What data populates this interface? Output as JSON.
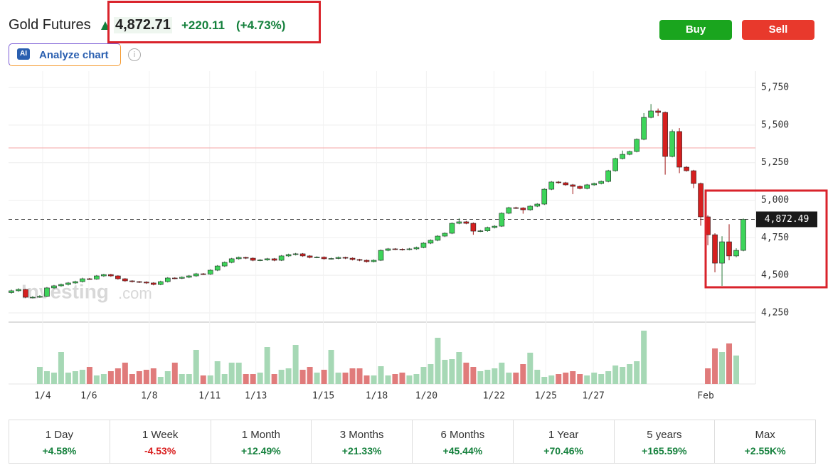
{
  "header": {
    "title": "Gold Futures",
    "price": "4,872.71",
    "change": "+220.11",
    "change_percent": "(+4.73%)"
  },
  "buttons": {
    "analyze_icon": "AI",
    "analyze": "Analyze chart",
    "info": "i",
    "buy": "Buy",
    "sell": "Sell"
  },
  "periods": [
    {
      "label": "1 Day",
      "change": "+4.58%"
    },
    {
      "label": "1 Week",
      "change": "-4.53%"
    },
    {
      "label": "1 Month",
      "change": "+12.49%"
    },
    {
      "label": "3 Months",
      "change": "+21.33%"
    },
    {
      "label": "6 Months",
      "change": "+45.44%"
    },
    {
      "label": "1 Year",
      "change": "+70.46%"
    },
    {
      "label": "5 years",
      "change": "+165.59%"
    },
    {
      "label": "Max",
      "change": "+2.55K%"
    }
  ],
  "chart_data": {
    "type": "candlestick",
    "watermark": {
      "brand": "Investing",
      "suffix": ".com"
    },
    "ylim": [
      4179,
      5859
    ],
    "yticks": [
      {
        "value": 4250,
        "label": "4,250"
      },
      {
        "value": 4500,
        "label": "4,500"
      },
      {
        "value": 4750,
        "label": "4,750"
      },
      {
        "value": 5000,
        "label": "5,000"
      },
      {
        "value": 5250,
        "label": "5,250"
      },
      {
        "value": 5500,
        "label": "5,500"
      },
      {
        "value": 5750,
        "label": "5,750"
      }
    ],
    "xticks": [
      {
        "value": 4.4,
        "label": "1/4"
      },
      {
        "value": 10.9,
        "label": "1/6"
      },
      {
        "value": 19.4,
        "label": "1/8"
      },
      {
        "value": 27.9,
        "label": "1/11"
      },
      {
        "value": 34.4,
        "label": "1/13"
      },
      {
        "value": 43.9,
        "label": "1/15"
      },
      {
        "value": 51.4,
        "label": "1/18"
      },
      {
        "value": 58.4,
        "label": "1/20"
      },
      {
        "value": 67.9,
        "label": "1/22"
      },
      {
        "value": 75.2,
        "label": "1/25"
      },
      {
        "value": 81.9,
        "label": "1/27"
      },
      {
        "value": 97.7,
        "label": "Feb"
      }
    ],
    "grid": true,
    "up_color": "#3dd45a",
    "down_color": "#d61f1f",
    "reference_line": 5348,
    "current_price": {
      "value": 4872.49,
      "label": "4,872.49"
    },
    "candles": [
      [
        4385,
        4405,
        4378,
        4397
      ],
      [
        4397,
        4414,
        4390,
        4406
      ],
      [
        4406,
        4410,
        4348,
        4354
      ],
      [
        4354,
        4362,
        4346,
        4354
      ],
      [
        4354,
        4368,
        4350,
        4360
      ],
      [
        4360,
        4422,
        4356,
        4416
      ],
      [
        4416,
        4436,
        4410,
        4430
      ],
      [
        4430,
        4445,
        4424,
        4439
      ],
      [
        4439,
        4455,
        4432,
        4449
      ],
      [
        4449,
        4464,
        4442,
        4458
      ],
      [
        4458,
        4484,
        4452,
        4477
      ],
      [
        4477,
        4482,
        4470,
        4475
      ],
      [
        4475,
        4502,
        4470,
        4496
      ],
      [
        4496,
        4510,
        4490,
        4505
      ],
      [
        4505,
        4510,
        4490,
        4496
      ],
      [
        4496,
        4500,
        4471,
        4477
      ],
      [
        4477,
        4481,
        4457,
        4463
      ],
      [
        4463,
        4467,
        4452,
        4458
      ],
      [
        4458,
        4462,
        4449,
        4455
      ],
      [
        4455,
        4460,
        4443,
        4449
      ],
      [
        4449,
        4454,
        4433,
        4439
      ],
      [
        4439,
        4464,
        4434,
        4458
      ],
      [
        4458,
        4488,
        4452,
        4482
      ],
      [
        4482,
        4487,
        4474,
        4480
      ],
      [
        4480,
        4493,
        4475,
        4487
      ],
      [
        4487,
        4502,
        4481,
        4496
      ],
      [
        4496,
        4516,
        4490,
        4510
      ],
      [
        4510,
        4515,
        4502,
        4508
      ],
      [
        4508,
        4540,
        4503,
        4534
      ],
      [
        4534,
        4568,
        4528,
        4562
      ],
      [
        4562,
        4592,
        4556,
        4586
      ],
      [
        4586,
        4616,
        4580,
        4610
      ],
      [
        4610,
        4625,
        4604,
        4619
      ],
      [
        4619,
        4624,
        4608,
        4614
      ],
      [
        4614,
        4619,
        4594,
        4600
      ],
      [
        4600,
        4608,
        4594,
        4602
      ],
      [
        4602,
        4616,
        4596,
        4610
      ],
      [
        4610,
        4615,
        4594,
        4600
      ],
      [
        4600,
        4635,
        4595,
        4629
      ],
      [
        4629,
        4644,
        4623,
        4638
      ],
      [
        4638,
        4649,
        4632,
        4643
      ],
      [
        4643,
        4648,
        4623,
        4629
      ],
      [
        4629,
        4634,
        4613,
        4619
      ],
      [
        4619,
        4627,
        4614,
        4621
      ],
      [
        4621,
        4626,
        4604,
        4610
      ],
      [
        4610,
        4618,
        4605,
        4612
      ],
      [
        4612,
        4625,
        4607,
        4619
      ],
      [
        4619,
        4624,
        4608,
        4614
      ],
      [
        4614,
        4619,
        4599,
        4605
      ],
      [
        4605,
        4610,
        4594,
        4600
      ],
      [
        4600,
        4605,
        4585,
        4591
      ],
      [
        4591,
        4606,
        4586,
        4600
      ],
      [
        4600,
        4672,
        4595,
        4666
      ],
      [
        4666,
        4682,
        4660,
        4676
      ],
      [
        4676,
        4681,
        4668,
        4674
      ],
      [
        4674,
        4679,
        4665,
        4671
      ],
      [
        4671,
        4682,
        4666,
        4676
      ],
      [
        4676,
        4691,
        4670,
        4685
      ],
      [
        4685,
        4720,
        4680,
        4714
      ],
      [
        4714,
        4739,
        4708,
        4733
      ],
      [
        4733,
        4767,
        4727,
        4761
      ],
      [
        4761,
        4786,
        4755,
        4780
      ],
      [
        4780,
        4852,
        4774,
        4846
      ],
      [
        4846,
        4880,
        4840,
        4856
      ],
      [
        4856,
        4862,
        4840,
        4846
      ],
      [
        4846,
        4852,
        4770,
        4794
      ],
      [
        4794,
        4802,
        4788,
        4796
      ],
      [
        4796,
        4824,
        4790,
        4818
      ],
      [
        4818,
        4833,
        4812,
        4827
      ],
      [
        4827,
        4919,
        4822,
        4913
      ],
      [
        4913,
        4956,
        4907,
        4950
      ],
      [
        4950,
        4956,
        4942,
        4948
      ],
      [
        4948,
        4953,
        4910,
        4936
      ],
      [
        4936,
        4966,
        4930,
        4960
      ],
      [
        4960,
        4980,
        4954,
        4974
      ],
      [
        4974,
        5079,
        4968,
        5073
      ],
      [
        5073,
        5127,
        5067,
        5121
      ],
      [
        5121,
        5127,
        5110,
        5116
      ],
      [
        5116,
        5122,
        5096,
        5102
      ],
      [
        5102,
        5108,
        5040,
        5092
      ],
      [
        5092,
        5098,
        5072,
        5078
      ],
      [
        5078,
        5108,
        5072,
        5102
      ],
      [
        5102,
        5117,
        5096,
        5111
      ],
      [
        5111,
        5131,
        5105,
        5125
      ],
      [
        5125,
        5202,
        5119,
        5196
      ],
      [
        5196,
        5283,
        5190,
        5277
      ],
      [
        5277,
        5330,
        5271,
        5305
      ],
      [
        5305,
        5330,
        5299,
        5324
      ],
      [
        5324,
        5411,
        5318,
        5405
      ],
      [
        5405,
        5580,
        5399,
        5551
      ],
      [
        5551,
        5640,
        5545,
        5594
      ],
      [
        5594,
        5610,
        5560,
        5584
      ],
      [
        5584,
        5590,
        5170,
        5291
      ],
      [
        5291,
        5470,
        5285,
        5457
      ],
      [
        5457,
        5480,
        5180,
        5220
      ],
      [
        5220,
        5226,
        5190,
        5196
      ],
      [
        5196,
        5202,
        5080,
        5111
      ],
      [
        5111,
        5117,
        4830,
        4889
      ],
      [
        4889,
        4900,
        4700,
        4770
      ],
      [
        4770,
        4780,
        4520,
        4581
      ],
      [
        4581,
        4760,
        4430,
        4723
      ],
      [
        4723,
        4840,
        4600,
        4629
      ],
      [
        4629,
        4680,
        4620,
        4666
      ],
      [
        4666,
        4878,
        4660,
        4872
      ]
    ],
    "volumes": [
      null,
      null,
      null,
      null,
      24,
      18,
      16,
      45,
      16,
      18,
      20,
      24,
      12,
      14,
      18,
      22,
      30,
      14,
      18,
      20,
      22,
      10,
      18,
      30,
      14,
      14,
      48,
      12,
      12,
      32,
      14,
      30,
      30,
      14,
      14,
      16,
      52,
      14,
      20,
      22,
      55,
      20,
      24,
      16,
      20,
      48,
      16,
      16,
      22,
      22,
      12,
      12,
      25,
      12,
      14,
      16,
      12,
      14,
      24,
      28,
      65,
      34,
      35,
      45,
      30,
      24,
      18,
      20,
      22,
      30,
      16,
      16,
      28,
      44,
      20,
      10,
      12,
      14,
      16,
      18,
      14,
      12,
      16,
      14,
      18,
      26,
      24,
      28,
      32,
      75,
      null,
      null,
      null,
      null,
      null,
      null,
      null,
      null,
      22,
      50,
      45,
      57,
      40,
      null
    ]
  }
}
